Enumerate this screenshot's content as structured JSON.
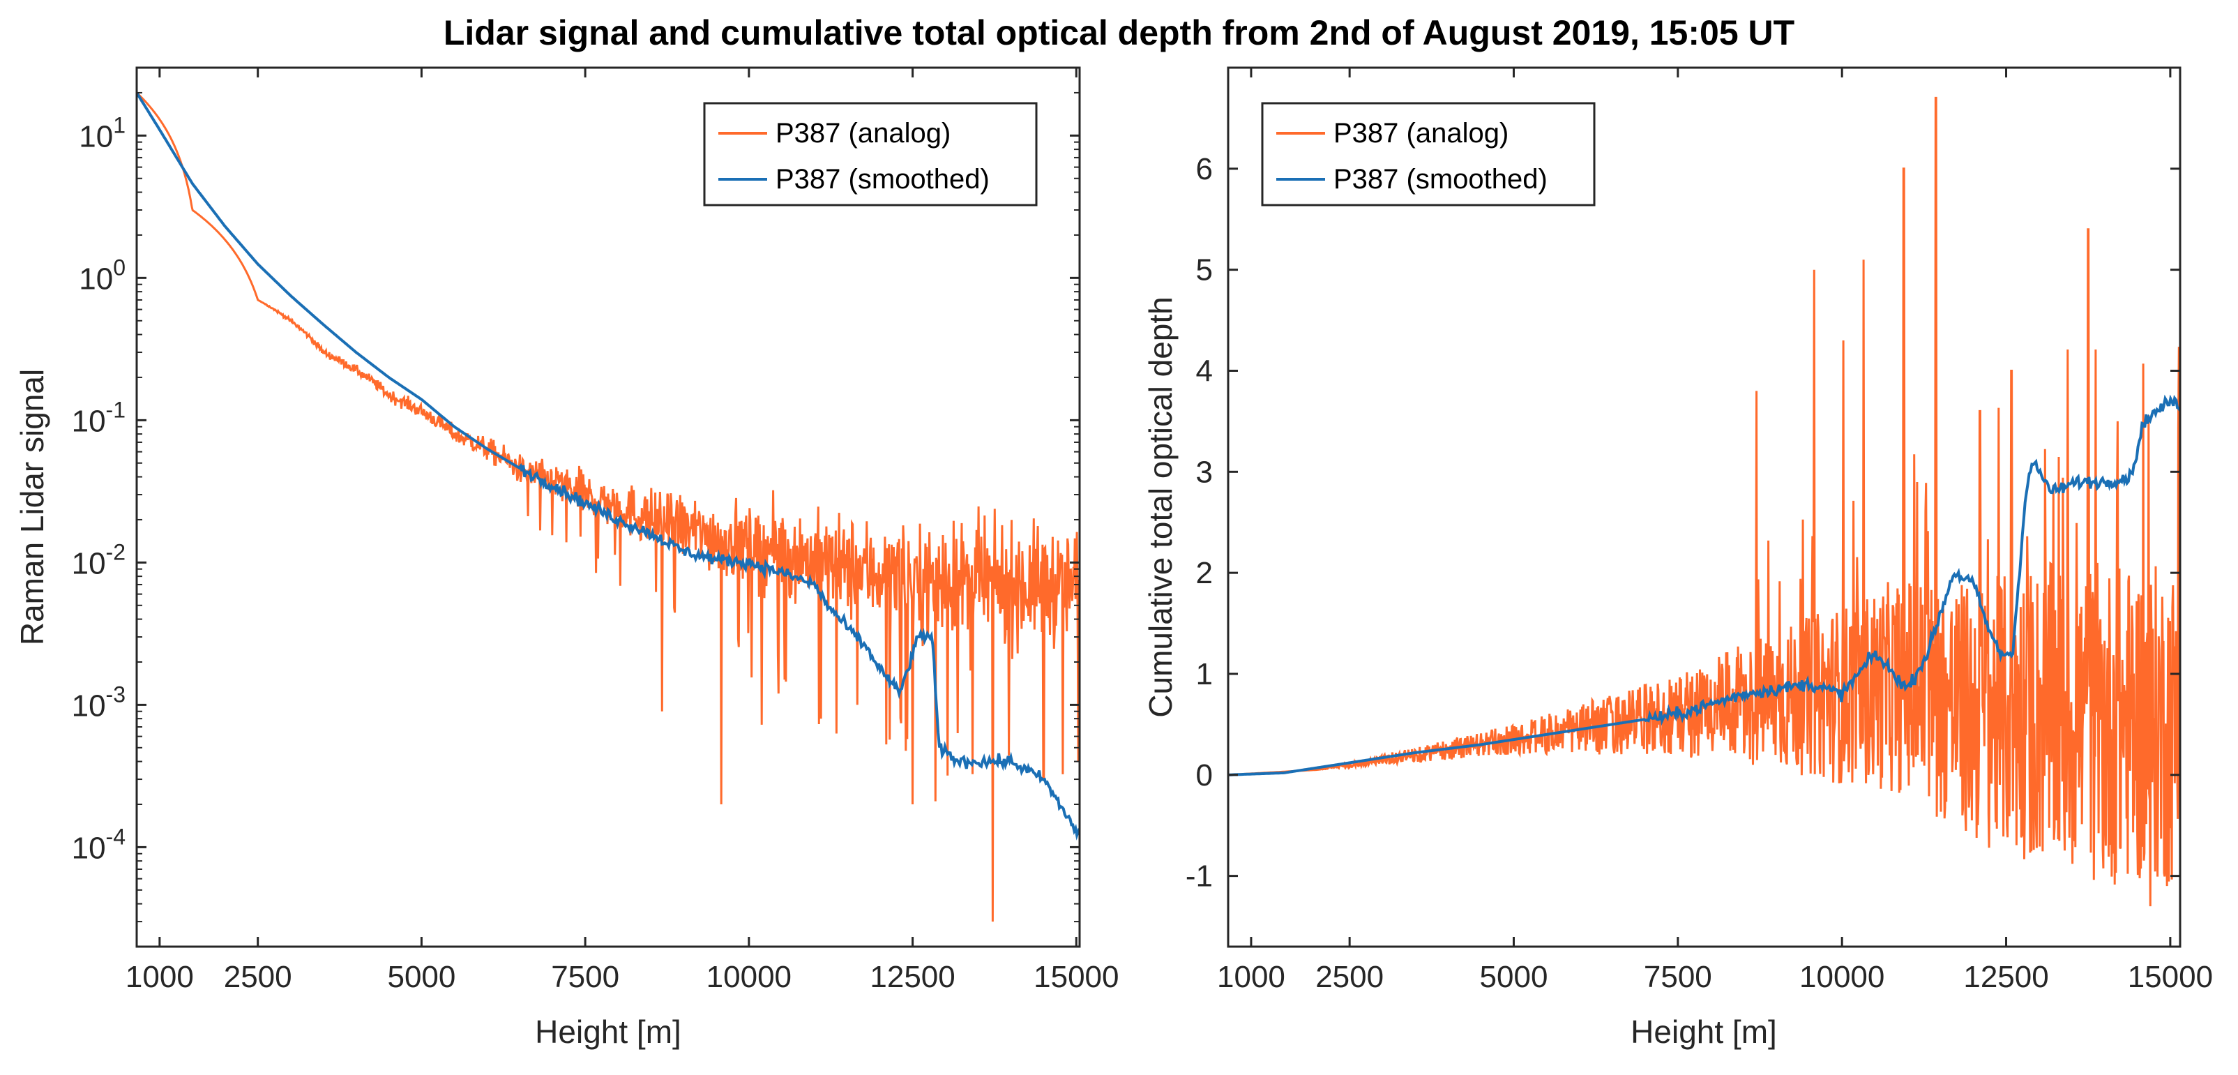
{
  "figure_title": "Lidar signal and cumulative total optical depth from 2nd of August 2019, 15:05 UT",
  "colors": {
    "analog": "#FF6A2B",
    "smoothed": "#1A6FB5",
    "axis": "#262626"
  },
  "chart_data": [
    {
      "type": "line",
      "yscale": "log",
      "xlabel": "Height [m]",
      "ylabel": "Raman Lidar signal",
      "xlim": [
        650,
        15050
      ],
      "ylim": [
        2e-05,
        30
      ],
      "xticks": [
        1000,
        2500,
        5000,
        7500,
        10000,
        12500,
        15000
      ],
      "xtick_labels": [
        "1000",
        "2500",
        "5000",
        "7500",
        "10000",
        "12500",
        "15000"
      ],
      "yticks": [
        10,
        1,
        0.1,
        0.01,
        0.001,
        0.0001
      ],
      "ytick_labels": [
        {
          "base": "10",
          "exp": "1"
        },
        {
          "base": "10",
          "exp": "0"
        },
        {
          "base": "10",
          "exp": "-1"
        },
        {
          "base": "10",
          "exp": "-2"
        },
        {
          "base": "10",
          "exp": "-3"
        },
        {
          "base": "10",
          "exp": "-4"
        }
      ],
      "legend": {
        "location": "top-right",
        "entries": [
          "P387 (analog)",
          "P387 (smoothed)"
        ]
      },
      "series": [
        {
          "name": "P387 (analog)",
          "color": "#FF6A2B",
          "x": [
            650,
            1500,
            2500,
            3500,
            4500,
            5500,
            6500,
            7500,
            8500,
            9500,
            10500,
            11500,
            12500,
            13500,
            14500,
            15050
          ],
          "values": [
            20,
            3,
            0.7,
            0.3,
            0.15,
            0.08,
            0.045,
            0.03,
            0.02,
            0.015,
            0.012,
            0.009,
            0.008,
            0.007,
            0.007,
            0.007
          ],
          "noise_log10": [
            0,
            0,
            0,
            0.05,
            0.08,
            0.12,
            0.2,
            0.3,
            0.4,
            0.5,
            0.6,
            0.7,
            0.75,
            0.8,
            0.8,
            0.8
          ],
          "min_spikes": [
            {
              "x": 8670,
              "y": 0.0009
            },
            {
              "x": 9580,
              "y": 0.0002
            },
            {
              "x": 10450,
              "y": 0.0012
            },
            {
              "x": 11100,
              "y": 0.0008
            },
            {
              "x": 12500,
              "y": 0.0002
            },
            {
              "x": 13720,
              "y": 3e-05
            },
            {
              "x": 14500,
              "y": 0.0003
            }
          ]
        },
        {
          "name": "P387 (smoothed)",
          "color": "#1A6FB5",
          "x": [
            650,
            1000,
            1500,
            2000,
            2500,
            3000,
            3500,
            4000,
            4500,
            5000,
            5500,
            6000,
            6500,
            7000,
            7500,
            8000,
            8500,
            9000,
            9500,
            10000,
            10500,
            11000,
            11200,
            11500,
            11800,
            12000,
            12300,
            12600,
            12800,
            12900,
            13200,
            13500,
            14000,
            14500,
            15050
          ],
          "values": [
            20,
            11,
            4.6,
            2.3,
            1.25,
            0.75,
            0.47,
            0.3,
            0.2,
            0.14,
            0.09,
            0.063,
            0.046,
            0.035,
            0.026,
            0.02,
            0.016,
            0.012,
            0.0105,
            0.01,
            0.0085,
            0.007,
            0.005,
            0.0035,
            0.0025,
            0.0018,
            0.0012,
            0.0031,
            0.003,
            0.0005,
            0.0004,
            0.0004,
            0.0004,
            0.0003,
            0.00012
          ]
        }
      ]
    },
    {
      "type": "line",
      "yscale": "linear",
      "xlabel": "Height [m]",
      "ylabel": "Cumulative total optical depth",
      "xlim": [
        650,
        15150
      ],
      "ylim": [
        -1.7,
        7.0
      ],
      "xticks": [
        1000,
        2500,
        5000,
        7500,
        10000,
        12500,
        15000
      ],
      "xtick_labels": [
        "1000",
        "2500",
        "5000",
        "7500",
        "10000",
        "12500",
        "15000"
      ],
      "yticks": [
        -1,
        0,
        1,
        2,
        3,
        4,
        5,
        6
      ],
      "ytick_labels": [
        "-1",
        "0",
        "1",
        "2",
        "3",
        "4",
        "5",
        "6"
      ],
      "legend": {
        "location": "top-left",
        "entries": [
          "P387 (analog)",
          "P387 (smoothed)"
        ]
      },
      "series": [
        {
          "name": "P387 (analog)",
          "color": "#FF6A2B",
          "x": [
            650,
            2000,
            3000,
            4000,
            5000,
            6000,
            7000,
            8000,
            9000,
            10000,
            11000,
            12000,
            13000,
            14000,
            15150
          ],
          "values": [
            0,
            0.05,
            0.15,
            0.25,
            0.35,
            0.45,
            0.55,
            0.65,
            0.75,
            0.8,
            0.9,
            0.6,
            0.6,
            0.5,
            0.5
          ],
          "noise_half_range": [
            0,
            0,
            0.05,
            0.1,
            0.15,
            0.25,
            0.35,
            0.5,
            0.7,
            0.9,
            1.1,
            1.3,
            1.5,
            1.6,
            1.6
          ],
          "max_spikes": [
            {
              "x": 8700,
              "y": 3.8
            },
            {
              "x": 9580,
              "y": 5.0
            },
            {
              "x": 10020,
              "y": 4.3
            },
            {
              "x": 10330,
              "y": 5.1
            },
            {
              "x": 10940,
              "y": 6.0
            },
            {
              "x": 11430,
              "y": 6.7
            },
            {
              "x": 12100,
              "y": 3.6
            },
            {
              "x": 12580,
              "y": 4.0
            },
            {
              "x": 13750,
              "y": 5.4
            },
            {
              "x": 14200,
              "y": 3.5
            }
          ],
          "min_spikes": [
            {
              "x": 14700,
              "y": -1.3
            },
            {
              "x": 14950,
              "y": -1.1
            }
          ]
        },
        {
          "name": "P387 (smoothed)",
          "color": "#1A6FB5",
          "x": [
            650,
            1500,
            2500,
            3500,
            4500,
            5500,
            6500,
            7500,
            8000,
            8500,
            9000,
            9500,
            10000,
            10500,
            11000,
            11300,
            11700,
            12000,
            12200,
            12400,
            12600,
            12800,
            12900,
            13200,
            13600,
            14000,
            14400,
            14600,
            15000,
            15150
          ],
          "values": [
            0,
            0.02,
            0.12,
            0.22,
            0.3,
            0.4,
            0.5,
            0.6,
            0.7,
            0.8,
            0.85,
            0.9,
            0.8,
            1.2,
            0.85,
            1.2,
            2.0,
            1.9,
            1.5,
            1.2,
            1.2,
            2.8,
            3.1,
            2.8,
            2.9,
            2.9,
            2.95,
            3.5,
            3.7,
            3.65
          ]
        }
      ]
    }
  ]
}
